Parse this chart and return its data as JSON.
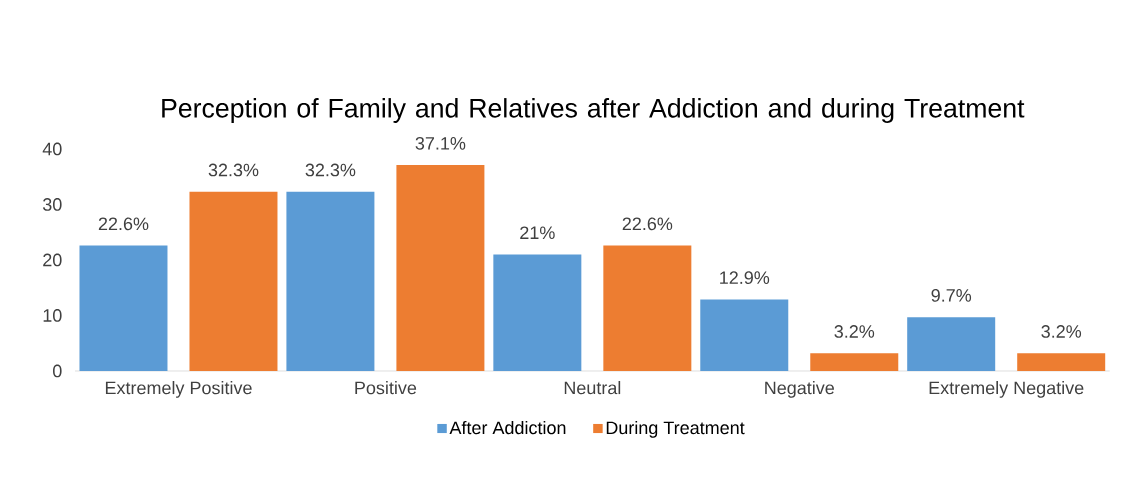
{
  "chart_data": {
    "type": "bar",
    "title": "Perception of Family and Relatives after Addiction and during Treatment",
    "categories": [
      "Extremely Positive",
      "Positive",
      "Neutral",
      "Negative",
      "Extremely Negative"
    ],
    "series": [
      {
        "name": "After Addiction",
        "color": "#5b9bd5",
        "values": [
          22.6,
          32.3,
          21,
          12.9,
          9.7
        ],
        "value_labels": [
          "22.6%",
          "32.3%",
          "21%",
          "12.9%",
          "9.7%"
        ]
      },
      {
        "name": "During Treatment",
        "color": "#ed7d31",
        "values": [
          32.3,
          37.1,
          22.6,
          3.2,
          3.2
        ],
        "value_labels": [
          "32.3%",
          "37.1%",
          "22.6%",
          "3.2%",
          "3.2%"
        ]
      }
    ],
    "ylim": [
      0,
      40
    ],
    "yticks": [
      0,
      10,
      20,
      30,
      40
    ],
    "legend": "bottom"
  }
}
